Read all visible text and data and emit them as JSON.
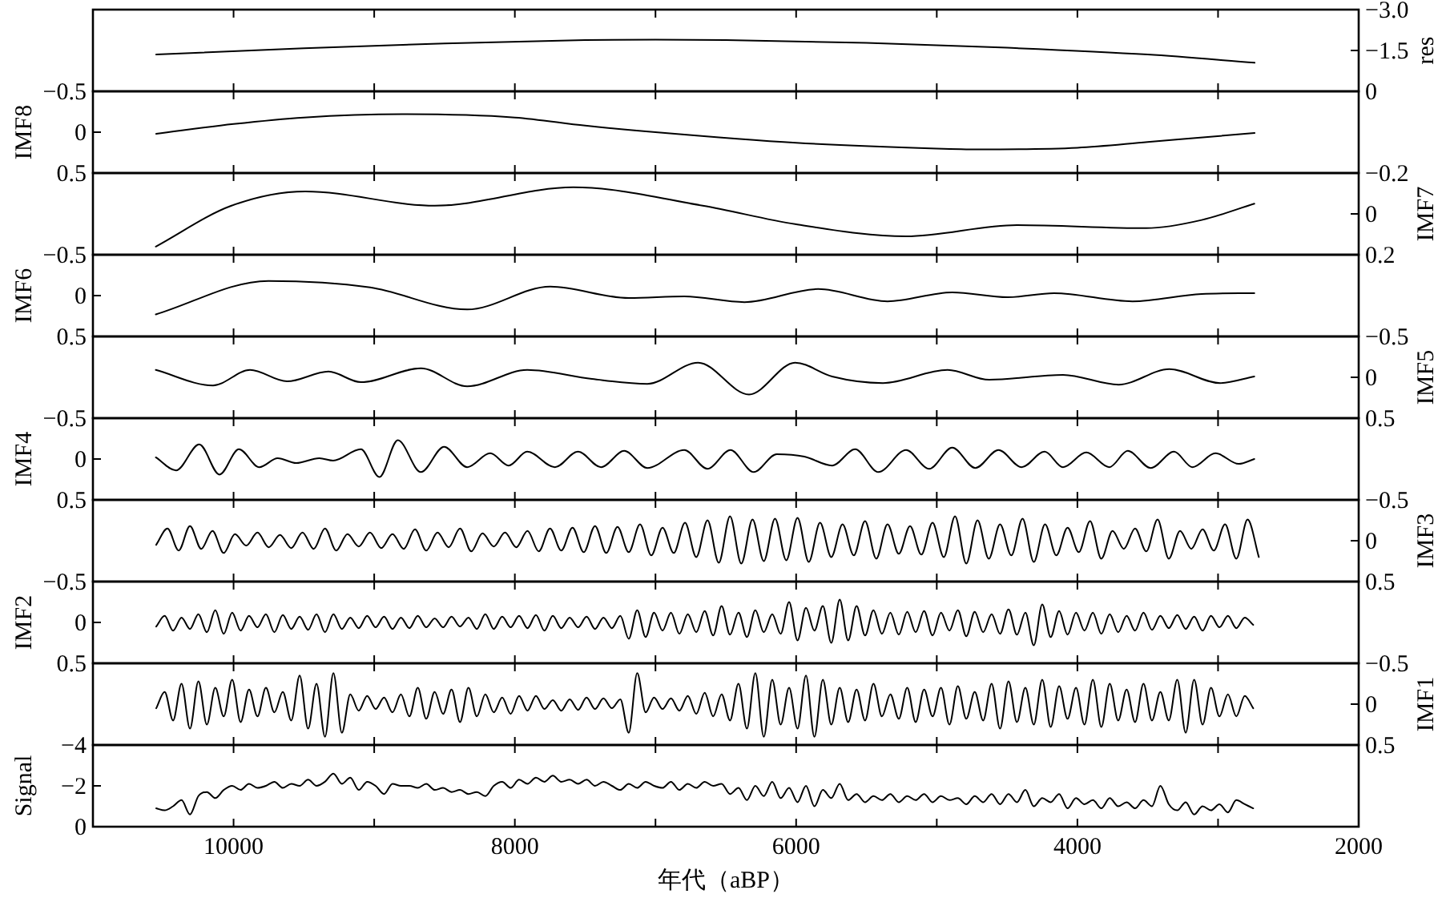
{
  "chart_data": [
    {
      "type": "line",
      "y2label": "res",
      "tick_labels": "y",
      "xlim": [
        11000,
        2000
      ],
      "xticks": [
        {
          "value": 10000,
          "label": null
        },
        {
          "value": 9000,
          "label": null
        },
        {
          "value": 8000,
          "label": null
        },
        {
          "value": 7000,
          "label": null
        },
        {
          "value": 6000,
          "label": null
        },
        {
          "value": 5000,
          "label": null
        },
        {
          "value": 4000,
          "label": null
        },
        {
          "value": 3000,
          "label": null
        }
      ],
      "y2lim": [
        0,
        -3
      ],
      "y2ticks": [
        {
          "value": -3,
          "label": "−3.0"
        },
        {
          "value": -1.5,
          "label": "−1.5"
        },
        {
          "value": 0,
          "label": "0"
        }
      ],
      "x": [
        10550,
        9500,
        8500,
        7500,
        7000,
        6500,
        5500,
        4500,
        3500,
        2740
      ],
      "series": [
        {
          "axis": "y2",
          "color": "#000000",
          "values": [
            -1.35,
            -1.58,
            -1.76,
            -1.88,
            -1.9,
            -1.88,
            -1.78,
            -1.6,
            -1.35,
            -1.05
          ]
        }
      ]
    },
    {
      "type": "line",
      "ylabel": "IMF8",
      "tick_labels": "y",
      "xlim": [
        11000,
        2000
      ],
      "xticks": [
        {
          "value": 10000,
          "label": null
        },
        {
          "value": 9000,
          "label": null
        },
        {
          "value": 8000,
          "label": null
        },
        {
          "value": 7000,
          "label": null
        },
        {
          "value": 6000,
          "label": null
        },
        {
          "value": 5000,
          "label": null
        },
        {
          "value": 4000,
          "label": null
        },
        {
          "value": 3000,
          "label": null
        }
      ],
      "ylim": [
        0.5,
        -0.5
      ],
      "yticks": [
        {
          "value": -0.5,
          "label": "−0.5"
        },
        {
          "value": 0,
          "label": "0"
        },
        {
          "value": 0.5,
          "label": "0.5"
        }
      ],
      "x": [
        10550,
        10000,
        9500,
        8800,
        8000,
        7500,
        7000,
        6000,
        5000,
        4700,
        4000,
        3500,
        2740
      ],
      "series": [
        {
          "color": "#000000",
          "values": [
            0.02,
            -0.1,
            -0.18,
            -0.22,
            -0.18,
            -0.08,
            0.0,
            0.13,
            0.2,
            0.21,
            0.19,
            0.12,
            0.01
          ]
        }
      ]
    },
    {
      "type": "line",
      "y2label": "IMF7",
      "tick_labels": "y",
      "xlim": [
        11000,
        2000
      ],
      "xticks": [
        {
          "value": 10000,
          "label": null
        },
        {
          "value": 9000,
          "label": null
        },
        {
          "value": 8000,
          "label": null
        },
        {
          "value": 7000,
          "label": null
        },
        {
          "value": 6000,
          "label": null
        },
        {
          "value": 5000,
          "label": null
        },
        {
          "value": 4000,
          "label": null
        },
        {
          "value": 3000,
          "label": null
        }
      ],
      "y2lim": [
        0.2,
        -0.2
      ],
      "y2ticks": [
        {
          "value": -0.2,
          "label": "−0.2"
        },
        {
          "value": 0,
          "label": "0"
        },
        {
          "value": 0.2,
          "label": "0.2"
        }
      ],
      "x": [
        10553,
        10015,
        9489,
        8569,
        7584,
        6664,
        6007,
        5218,
        4430,
        3510,
        3116,
        2742
      ],
      "series": [
        {
          "axis": "y2",
          "color": "#000000",
          "values": [
            0.16,
            -0.04,
            -0.11,
            -0.04,
            -0.13,
            -0.04,
            0.05,
            0.11,
            0.055,
            0.07,
            0.03,
            -0.05
          ]
        }
      ]
    },
    {
      "type": "line",
      "ylabel": "IMF6",
      "tick_labels": "y",
      "xlim": [
        11000,
        2000
      ],
      "xticks": [
        {
          "value": 10000,
          "label": null
        },
        {
          "value": 9000,
          "label": null
        },
        {
          "value": 8000,
          "label": null
        },
        {
          "value": 7000,
          "label": null
        },
        {
          "value": 6000,
          "label": null
        },
        {
          "value": 5000,
          "label": null
        },
        {
          "value": 4000,
          "label": null
        },
        {
          "value": 3000,
          "label": null
        }
      ],
      "ylim": [
        0.5,
        -0.5
      ],
      "yticks": [
        {
          "value": -0.5,
          "label": "−0.5"
        },
        {
          "value": 0,
          "label": "0"
        },
        {
          "value": 0.5,
          "label": "0.5"
        }
      ],
      "x": [
        10553,
        9752,
        9029,
        8339,
        7748,
        7189,
        6795,
        6368,
        5843,
        5350,
        4890,
        4496,
        4167,
        3609,
        3116,
        2742
      ],
      "series": [
        {
          "color": "#000000",
          "values": [
            0.23,
            -0.18,
            -0.1,
            0.17,
            -0.11,
            0.03,
            0.01,
            0.08,
            -0.08,
            0.07,
            -0.04,
            0.02,
            -0.03,
            0.07,
            -0.02,
            -0.03
          ]
        }
      ]
    },
    {
      "type": "line",
      "y2label": "IMF5",
      "tick_labels": "y",
      "xlim": [
        11000,
        2000
      ],
      "xticks": [
        {
          "value": 10000,
          "label": null
        },
        {
          "value": 9000,
          "label": null
        },
        {
          "value": 8000,
          "label": null
        },
        {
          "value": 7000,
          "label": null
        },
        {
          "value": 6000,
          "label": null
        },
        {
          "value": 5000,
          "label": null
        },
        {
          "value": 4000,
          "label": null
        },
        {
          "value": 3000,
          "label": null
        }
      ],
      "y2lim": [
        0.5,
        -0.5
      ],
      "y2ticks": [
        {
          "value": -0.5,
          "label": "−0.5"
        },
        {
          "value": 0,
          "label": "0"
        },
        {
          "value": 0.5,
          "label": "0.5"
        }
      ],
      "x": [
        10553,
        10146,
        9883,
        9620,
        9325,
        9095,
        8668,
        8339,
        7912,
        7452,
        7058,
        6697,
        6335,
        6007,
        5744,
        5383,
        4923,
        4627,
        4102,
        3707,
        3346,
        2985,
        2742
      ],
      "series": [
        {
          "axis": "y2",
          "color": "#000000",
          "values": [
            -0.09,
            0.1,
            -0.09,
            0.05,
            -0.07,
            0.06,
            -0.11,
            0.11,
            -0.09,
            0.02,
            0.08,
            -0.18,
            0.21,
            -0.18,
            -0.01,
            0.07,
            -0.09,
            0.03,
            -0.03,
            0.09,
            -0.1,
            0.07,
            -0.01
          ]
        }
      ]
    },
    {
      "type": "line",
      "ylabel": "IMF4",
      "tick_labels": "y",
      "xlim": [
        11000,
        2000
      ],
      "xticks": [
        {
          "value": 10000,
          "label": null
        },
        {
          "value": 9000,
          "label": null
        },
        {
          "value": 8000,
          "label": null
        },
        {
          "value": 7000,
          "label": null
        },
        {
          "value": 6000,
          "label": null
        },
        {
          "value": 5000,
          "label": null
        },
        {
          "value": 4000,
          "label": null
        },
        {
          "value": 3000,
          "label": null
        }
      ],
      "ylim": [
        0.5,
        -0.5
      ],
      "yticks": [
        {
          "value": -0.5,
          "label": "−0.5"
        },
        {
          "value": 0,
          "label": "0"
        },
        {
          "value": 0.5,
          "label": "0.5"
        }
      ],
      "x": [
        10553,
        10409,
        10244,
        10100,
        9962,
        9817,
        9686,
        9555,
        9390,
        9292,
        9095,
        8963,
        8832,
        8668,
        8503,
        8339,
        8175,
        8044,
        7912,
        7715,
        7551,
        7387,
        7222,
        7058,
        6795,
        6631,
        6467,
        6302,
        6138,
        5941,
        5744,
        5580,
        5416,
        5218,
        5054,
        4890,
        4726,
        4561,
        4397,
        4233,
        4102,
        3937,
        3773,
        3642,
        3478,
        3313,
        3182,
        3018,
        2853,
        2742
      ],
      "series": [
        {
          "color": "#000000",
          "values": [
            -0.02,
            0.14,
            -0.18,
            0.19,
            -0.12,
            0.1,
            -0.01,
            0.05,
            -0.01,
            0.02,
            -0.12,
            0.22,
            -0.23,
            0.16,
            -0.15,
            0.1,
            -0.07,
            0.08,
            -0.09,
            0.1,
            -0.09,
            0.1,
            -0.1,
            0.11,
            -0.11,
            0.12,
            -0.11,
            0.16,
            -0.06,
            -0.03,
            0.08,
            -0.12,
            0.16,
            -0.11,
            0.12,
            -0.14,
            0.11,
            -0.11,
            0.1,
            -0.09,
            0.1,
            -0.08,
            0.1,
            -0.1,
            0.11,
            -0.09,
            0.1,
            -0.07,
            0.06,
            0
          ]
        }
      ]
    },
    {
      "type": "line",
      "y2label": "IMF3",
      "tick_labels": "y",
      "xlim": [
        11000,
        2000
      ],
      "xticks": [
        {
          "value": 10000,
          "label": null
        },
        {
          "value": 9000,
          "label": null
        },
        {
          "value": 8000,
          "label": null
        },
        {
          "value": 7000,
          "label": null
        },
        {
          "value": 6000,
          "label": null
        },
        {
          "value": 5000,
          "label": null
        },
        {
          "value": 4000,
          "label": null
        },
        {
          "value": 3000,
          "label": null
        }
      ],
      "y2lim": [
        0.5,
        -0.5
      ],
      "y2ticks": [
        {
          "value": -0.5,
          "label": "−0.5"
        },
        {
          "value": 0,
          "label": "0"
        },
        {
          "value": 0.5,
          "label": "0.5"
        }
      ],
      "x": [
        10550,
        10470,
        10390,
        10310,
        10230,
        10150,
        10070,
        9990,
        9910,
        9830,
        9750,
        9670,
        9590,
        9510,
        9430,
        9350,
        9270,
        9190,
        9110,
        9030,
        8950,
        8870,
        8790,
        8710,
        8630,
        8550,
        8470,
        8390,
        8310,
        8230,
        8150,
        8070,
        7990,
        7910,
        7830,
        7750,
        7670,
        7590,
        7510,
        7430,
        7350,
        7270,
        7190,
        7110,
        7030,
        6950,
        6870,
        6790,
        6710,
        6630,
        6550,
        6470,
        6390,
        6310,
        6230,
        6150,
        6070,
        5990,
        5910,
        5830,
        5750,
        5670,
        5590,
        5510,
        5430,
        5350,
        5270,
        5190,
        5110,
        5030,
        4950,
        4870,
        4790,
        4710,
        4630,
        4550,
        4470,
        4390,
        4310,
        4230,
        4150,
        4070,
        3990,
        3910,
        3830,
        3750,
        3670,
        3590,
        3510,
        3430,
        3350,
        3270,
        3190,
        3110,
        3030,
        2950,
        2870,
        2790,
        2710
      ],
      "series": [
        {
          "axis": "y2",
          "color": "#000000",
          "values": [
            0.05,
            -0.15,
            0.12,
            -0.18,
            0.1,
            -0.12,
            0.15,
            -0.08,
            0.06,
            -0.1,
            0.08,
            -0.07,
            0.09,
            -0.1,
            0.1,
            -0.15,
            0.12,
            -0.08,
            0.07,
            -0.1,
            0.09,
            -0.08,
            0.1,
            -0.14,
            0.12,
            -0.1,
            0.08,
            -0.15,
            0.13,
            -0.09,
            0.07,
            -0.1,
            0.08,
            -0.12,
            0.13,
            -0.15,
            0.12,
            -0.16,
            0.14,
            -0.18,
            0.15,
            -0.17,
            0.14,
            -0.2,
            0.18,
            -0.16,
            0.15,
            -0.22,
            0.2,
            -0.25,
            0.27,
            -0.3,
            0.28,
            -0.26,
            0.25,
            -0.27,
            0.24,
            -0.28,
            0.26,
            -0.22,
            0.2,
            -0.2,
            0.18,
            -0.24,
            0.22,
            -0.2,
            0.16,
            -0.18,
            0.17,
            -0.22,
            0.2,
            -0.3,
            0.28,
            -0.25,
            0.22,
            -0.2,
            0.18,
            -0.27,
            0.26,
            -0.2,
            0.18,
            -0.16,
            0.14,
            -0.24,
            0.22,
            -0.12,
            0.1,
            -0.15,
            0.13,
            -0.26,
            0.22,
            -0.12,
            0.1,
            -0.14,
            0.12,
            -0.2,
            0.22,
            -0.26,
            0.2
          ]
        }
      ]
    },
    {
      "type": "line",
      "ylabel": "IMF2",
      "tick_labels": "y",
      "xlim": [
        11000,
        2000
      ],
      "xticks": [
        {
          "value": 10000,
          "label": null
        },
        {
          "value": 9000,
          "label": null
        },
        {
          "value": 8000,
          "label": null
        },
        {
          "value": 7000,
          "label": null
        },
        {
          "value": 6000,
          "label": null
        },
        {
          "value": 5000,
          "label": null
        },
        {
          "value": 4000,
          "label": null
        },
        {
          "value": 3000,
          "label": null
        }
      ],
      "ylim": [
        0.5,
        -0.5
      ],
      "yticks": [
        {
          "value": -0.5,
          "label": "−0.5"
        },
        {
          "value": 0,
          "label": "0"
        },
        {
          "value": 0.5,
          "label": "0.5"
        }
      ],
      "x": [
        10550,
        10490,
        10430,
        10370,
        10310,
        10250,
        10190,
        10130,
        10070,
        10010,
        9950,
        9890,
        9830,
        9770,
        9710,
        9650,
        9590,
        9530,
        9470,
        9410,
        9350,
        9290,
        9230,
        9170,
        9110,
        9050,
        8990,
        8930,
        8870,
        8810,
        8750,
        8690,
        8630,
        8570,
        8510,
        8450,
        8390,
        8330,
        8270,
        8210,
        8150,
        8090,
        8030,
        7970,
        7910,
        7850,
        7790,
        7730,
        7670,
        7610,
        7550,
        7490,
        7430,
        7370,
        7310,
        7250,
        7190,
        7130,
        7070,
        7010,
        6950,
        6890,
        6830,
        6770,
        6710,
        6650,
        6590,
        6530,
        6470,
        6410,
        6350,
        6290,
        6230,
        6170,
        6110,
        6050,
        5990,
        5930,
        5870,
        5810,
        5750,
        5690,
        5630,
        5570,
        5510,
        5450,
        5390,
        5330,
        5270,
        5210,
        5150,
        5090,
        5030,
        4970,
        4910,
        4850,
        4790,
        4730,
        4670,
        4610,
        4550,
        4490,
        4430,
        4370,
        4310,
        4250,
        4190,
        4130,
        4070,
        4010,
        3950,
        3890,
        3830,
        3770,
        3710,
        3650,
        3590,
        3530,
        3470,
        3410,
        3350,
        3290,
        3230,
        3170,
        3110,
        3050,
        2990,
        2930,
        2870,
        2810,
        2750
      ],
      "series": [
        {
          "color": "#000000",
          "values": [
            0.05,
            -0.08,
            0.1,
            -0.06,
            0.08,
            -0.1,
            0.12,
            -0.15,
            0.14,
            -0.12,
            0.1,
            -0.08,
            0.06,
            -0.1,
            0.12,
            -0.09,
            0.08,
            -0.07,
            0.09,
            -0.1,
            0.12,
            -0.1,
            0.08,
            -0.06,
            0.07,
            -0.08,
            0.06,
            -0.07,
            0.08,
            -0.06,
            0.07,
            -0.08,
            0.06,
            -0.05,
            0.06,
            -0.07,
            0.05,
            -0.06,
            0.08,
            -0.1,
            0.08,
            -0.07,
            0.06,
            -0.08,
            0.07,
            -0.09,
            0.1,
            -0.08,
            0.07,
            -0.06,
            0.06,
            -0.07,
            0.08,
            -0.06,
            0.07,
            -0.08,
            0.2,
            -0.15,
            0.18,
            -0.12,
            0.1,
            -0.12,
            0.14,
            -0.1,
            0.12,
            -0.14,
            0.16,
            -0.2,
            0.15,
            -0.12,
            0.18,
            -0.15,
            0.12,
            -0.1,
            0.14,
            -0.25,
            0.22,
            -0.18,
            0.1,
            -0.2,
            0.25,
            -0.28,
            0.22,
            -0.2,
            0.16,
            -0.15,
            0.14,
            -0.12,
            0.15,
            -0.13,
            0.12,
            -0.14,
            0.16,
            -0.12,
            0.1,
            -0.15,
            0.17,
            -0.13,
            0.12,
            -0.1,
            0.14,
            -0.16,
            0.15,
            -0.12,
            0.28,
            -0.22,
            0.18,
            -0.14,
            0.15,
            -0.12,
            0.1,
            -0.12,
            0.14,
            -0.1,
            0.12,
            -0.08,
            0.1,
            -0.12,
            0.09,
            -0.08,
            0.07,
            -0.09,
            0.08,
            -0.07,
            0.1,
            -0.08,
            0.06,
            -0.08,
            0.07,
            -0.06,
            0.03
          ]
        }
      ]
    },
    {
      "type": "line",
      "y2label": "IMF1",
      "tick_labels": "y",
      "xlim": [
        11000,
        2000
      ],
      "xticks": [
        {
          "value": 10000,
          "label": null
        },
        {
          "value": 9000,
          "label": null
        },
        {
          "value": 8000,
          "label": null
        },
        {
          "value": 7000,
          "label": null
        },
        {
          "value": 6000,
          "label": null
        },
        {
          "value": 5000,
          "label": null
        },
        {
          "value": 4000,
          "label": null
        },
        {
          "value": 3000,
          "label": null
        }
      ],
      "y2lim": [
        0.5,
        -0.5
      ],
      "y2ticks": [
        {
          "value": -0.5,
          "label": "−0.5"
        },
        {
          "value": 0,
          "label": "0"
        },
        {
          "value": 0.5,
          "label": "0.5"
        }
      ],
      "x": [
        10550,
        10490,
        10430,
        10370,
        10310,
        10250,
        10190,
        10130,
        10070,
        10010,
        9950,
        9890,
        9830,
        9770,
        9710,
        9650,
        9590,
        9530,
        9470,
        9410,
        9350,
        9290,
        9230,
        9170,
        9110,
        9050,
        8990,
        8930,
        8870,
        8810,
        8750,
        8690,
        8630,
        8570,
        8510,
        8450,
        8390,
        8330,
        8270,
        8210,
        8150,
        8090,
        8030,
        7970,
        7910,
        7850,
        7790,
        7730,
        7670,
        7610,
        7550,
        7490,
        7430,
        7370,
        7310,
        7250,
        7190,
        7130,
        7070,
        7010,
        6950,
        6890,
        6830,
        6770,
        6710,
        6650,
        6590,
        6530,
        6470,
        6410,
        6350,
        6290,
        6230,
        6170,
        6110,
        6050,
        5990,
        5930,
        5870,
        5810,
        5750,
        5690,
        5630,
        5570,
        5510,
        5450,
        5390,
        5330,
        5270,
        5210,
        5150,
        5090,
        5030,
        4970,
        4910,
        4850,
        4790,
        4730,
        4670,
        4610,
        4550,
        4490,
        4430,
        4370,
        4310,
        4250,
        4190,
        4130,
        4070,
        4010,
        3950,
        3890,
        3830,
        3770,
        3710,
        3650,
        3590,
        3530,
        3470,
        3410,
        3350,
        3290,
        3230,
        3170,
        3110,
        3050,
        2990,
        2930,
        2870,
        2810,
        2750
      ],
      "series": [
        {
          "axis": "y2",
          "color": "#000000",
          "values": [
            0.05,
            -0.15,
            0.2,
            -0.25,
            0.3,
            -0.28,
            0.25,
            -0.2,
            0.15,
            -0.3,
            0.22,
            -0.18,
            0.15,
            -0.2,
            0.1,
            -0.15,
            0.2,
            -0.35,
            0.3,
            -0.25,
            0.4,
            -0.38,
            0.35,
            -0.12,
            0.08,
            -0.1,
            0.06,
            -0.08,
            0.1,
            -0.12,
            0.15,
            -0.2,
            0.18,
            -0.15,
            0.12,
            -0.18,
            0.22,
            -0.2,
            0.15,
            -0.12,
            0.1,
            -0.08,
            0.12,
            -0.1,
            0.08,
            -0.1,
            0.06,
            -0.05,
            0.08,
            -0.06,
            0.07,
            -0.08,
            0.06,
            -0.07,
            0.05,
            -0.06,
            0.35,
            -0.38,
            0.1,
            -0.08,
            0.06,
            -0.07,
            0.08,
            -0.1,
            0.12,
            -0.14,
            0.15,
            -0.12,
            0.2,
            -0.25,
            0.3,
            -0.38,
            0.4,
            -0.3,
            0.25,
            -0.2,
            0.3,
            -0.35,
            0.4,
            -0.3,
            0.25,
            -0.2,
            0.22,
            -0.18,
            0.2,
            -0.25,
            0.15,
            -0.12,
            0.18,
            -0.2,
            0.22,
            -0.18,
            0.15,
            -0.2,
            0.25,
            -0.22,
            0.18,
            -0.15,
            0.2,
            -0.25,
            0.3,
            -0.28,
            0.22,
            -0.2,
            0.25,
            -0.3,
            0.28,
            -0.22,
            0.18,
            -0.2,
            0.25,
            -0.3,
            0.28,
            -0.25,
            0.2,
            -0.18,
            0.22,
            -0.25,
            0.2,
            -0.15,
            0.2,
            -0.3,
            0.35,
            -0.3,
            0.25,
            -0.2,
            0.15,
            -0.12,
            0.15,
            -0.1,
            0.05
          ]
        }
      ]
    },
    {
      "type": "line",
      "ylabel": "Signal",
      "xlabel": "年代（aBP）",
      "xlim": [
        11000,
        2000
      ],
      "xticks": [
        {
          "value": 10000,
          "label": "10000"
        },
        {
          "value": 9000,
          "label": null
        },
        {
          "value": 8000,
          "label": "8000"
        },
        {
          "value": 7000,
          "label": null
        },
        {
          "value": 6000,
          "label": "6000"
        },
        {
          "value": 5000,
          "label": null
        },
        {
          "value": 4000,
          "label": "4000"
        },
        {
          "value": 3000,
          "label": null
        },
        {
          "value": 2000,
          "label": "2000"
        }
      ],
      "ylim": [
        0,
        -4
      ],
      "yticks": [
        {
          "value": -4,
          "label": "−4"
        },
        {
          "value": -2,
          "label": "−2"
        },
        {
          "value": 0,
          "label": "0"
        }
      ],
      "x": [
        10550,
        10490,
        10430,
        10370,
        10310,
        10250,
        10190,
        10130,
        10070,
        10010,
        9950,
        9890,
        9830,
        9770,
        9710,
        9650,
        9590,
        9530,
        9470,
        9410,
        9350,
        9290,
        9230,
        9170,
        9110,
        9050,
        8990,
        8930,
        8870,
        8810,
        8750,
        8690,
        8630,
        8570,
        8510,
        8450,
        8390,
        8330,
        8270,
        8210,
        8150,
        8090,
        8030,
        7970,
        7910,
        7850,
        7790,
        7730,
        7670,
        7610,
        7550,
        7490,
        7430,
        7370,
        7310,
        7250,
        7190,
        7130,
        7070,
        7010,
        6950,
        6890,
        6830,
        6770,
        6710,
        6650,
        6590,
        6530,
        6470,
        6410,
        6350,
        6290,
        6230,
        6170,
        6110,
        6050,
        5990,
        5930,
        5870,
        5810,
        5750,
        5690,
        5630,
        5570,
        5510,
        5450,
        5390,
        5330,
        5270,
        5210,
        5150,
        5090,
        5030,
        4970,
        4910,
        4850,
        4790,
        4730,
        4670,
        4610,
        4550,
        4490,
        4430,
        4370,
        4310,
        4250,
        4190,
        4130,
        4070,
        4010,
        3950,
        3890,
        3830,
        3770,
        3710,
        3650,
        3590,
        3530,
        3470,
        3410,
        3350,
        3290,
        3230,
        3170,
        3110,
        3050,
        2990,
        2930,
        2870,
        2810,
        2750
      ],
      "series": [
        {
          "color": "#000000",
          "values": [
            -0.9,
            -0.8,
            -1.0,
            -1.3,
            -0.6,
            -1.5,
            -1.7,
            -1.4,
            -1.8,
            -2.0,
            -1.8,
            -2.1,
            -1.9,
            -2.0,
            -2.2,
            -1.9,
            -2.1,
            -2.0,
            -2.3,
            -2.0,
            -2.2,
            -2.6,
            -2.1,
            -2.4,
            -1.8,
            -2.2,
            -2.0,
            -1.6,
            -2.1,
            -2.0,
            -2.0,
            -1.9,
            -2.1,
            -1.8,
            -1.9,
            -1.7,
            -1.8,
            -1.6,
            -1.7,
            -1.5,
            -2.0,
            -2.2,
            -1.9,
            -2.3,
            -2.1,
            -2.4,
            -2.2,
            -2.5,
            -2.2,
            -2.3,
            -2.1,
            -2.3,
            -2.0,
            -2.2,
            -2.0,
            -1.8,
            -2.1,
            -1.9,
            -2.2,
            -2.0,
            -1.9,
            -2.2,
            -1.8,
            -2.1,
            -1.9,
            -2.2,
            -2.0,
            -2.1,
            -1.6,
            -1.9,
            -1.3,
            -2.0,
            -1.5,
            -2.2,
            -1.4,
            -1.9,
            -1.2,
            -2.0,
            -1.0,
            -1.8,
            -1.4,
            -2.1,
            -1.3,
            -1.6,
            -1.2,
            -1.5,
            -1.3,
            -1.6,
            -1.2,
            -1.5,
            -1.3,
            -1.6,
            -1.2,
            -1.5,
            -1.3,
            -1.4,
            -1.1,
            -1.5,
            -1.2,
            -1.6,
            -1.1,
            -1.6,
            -1.2,
            -1.8,
            -1.0,
            -1.4,
            -1.2,
            -1.6,
            -0.9,
            -1.4,
            -1.1,
            -1.3,
            -0.9,
            -1.4,
            -1.0,
            -1.2,
            -0.9,
            -1.3,
            -1.0,
            -2.0,
            -1.1,
            -0.8,
            -1.2,
            -0.6,
            -1.0,
            -0.8,
            -1.1,
            -0.7,
            -1.3,
            -1.1,
            -0.9
          ]
        }
      ]
    }
  ]
}
